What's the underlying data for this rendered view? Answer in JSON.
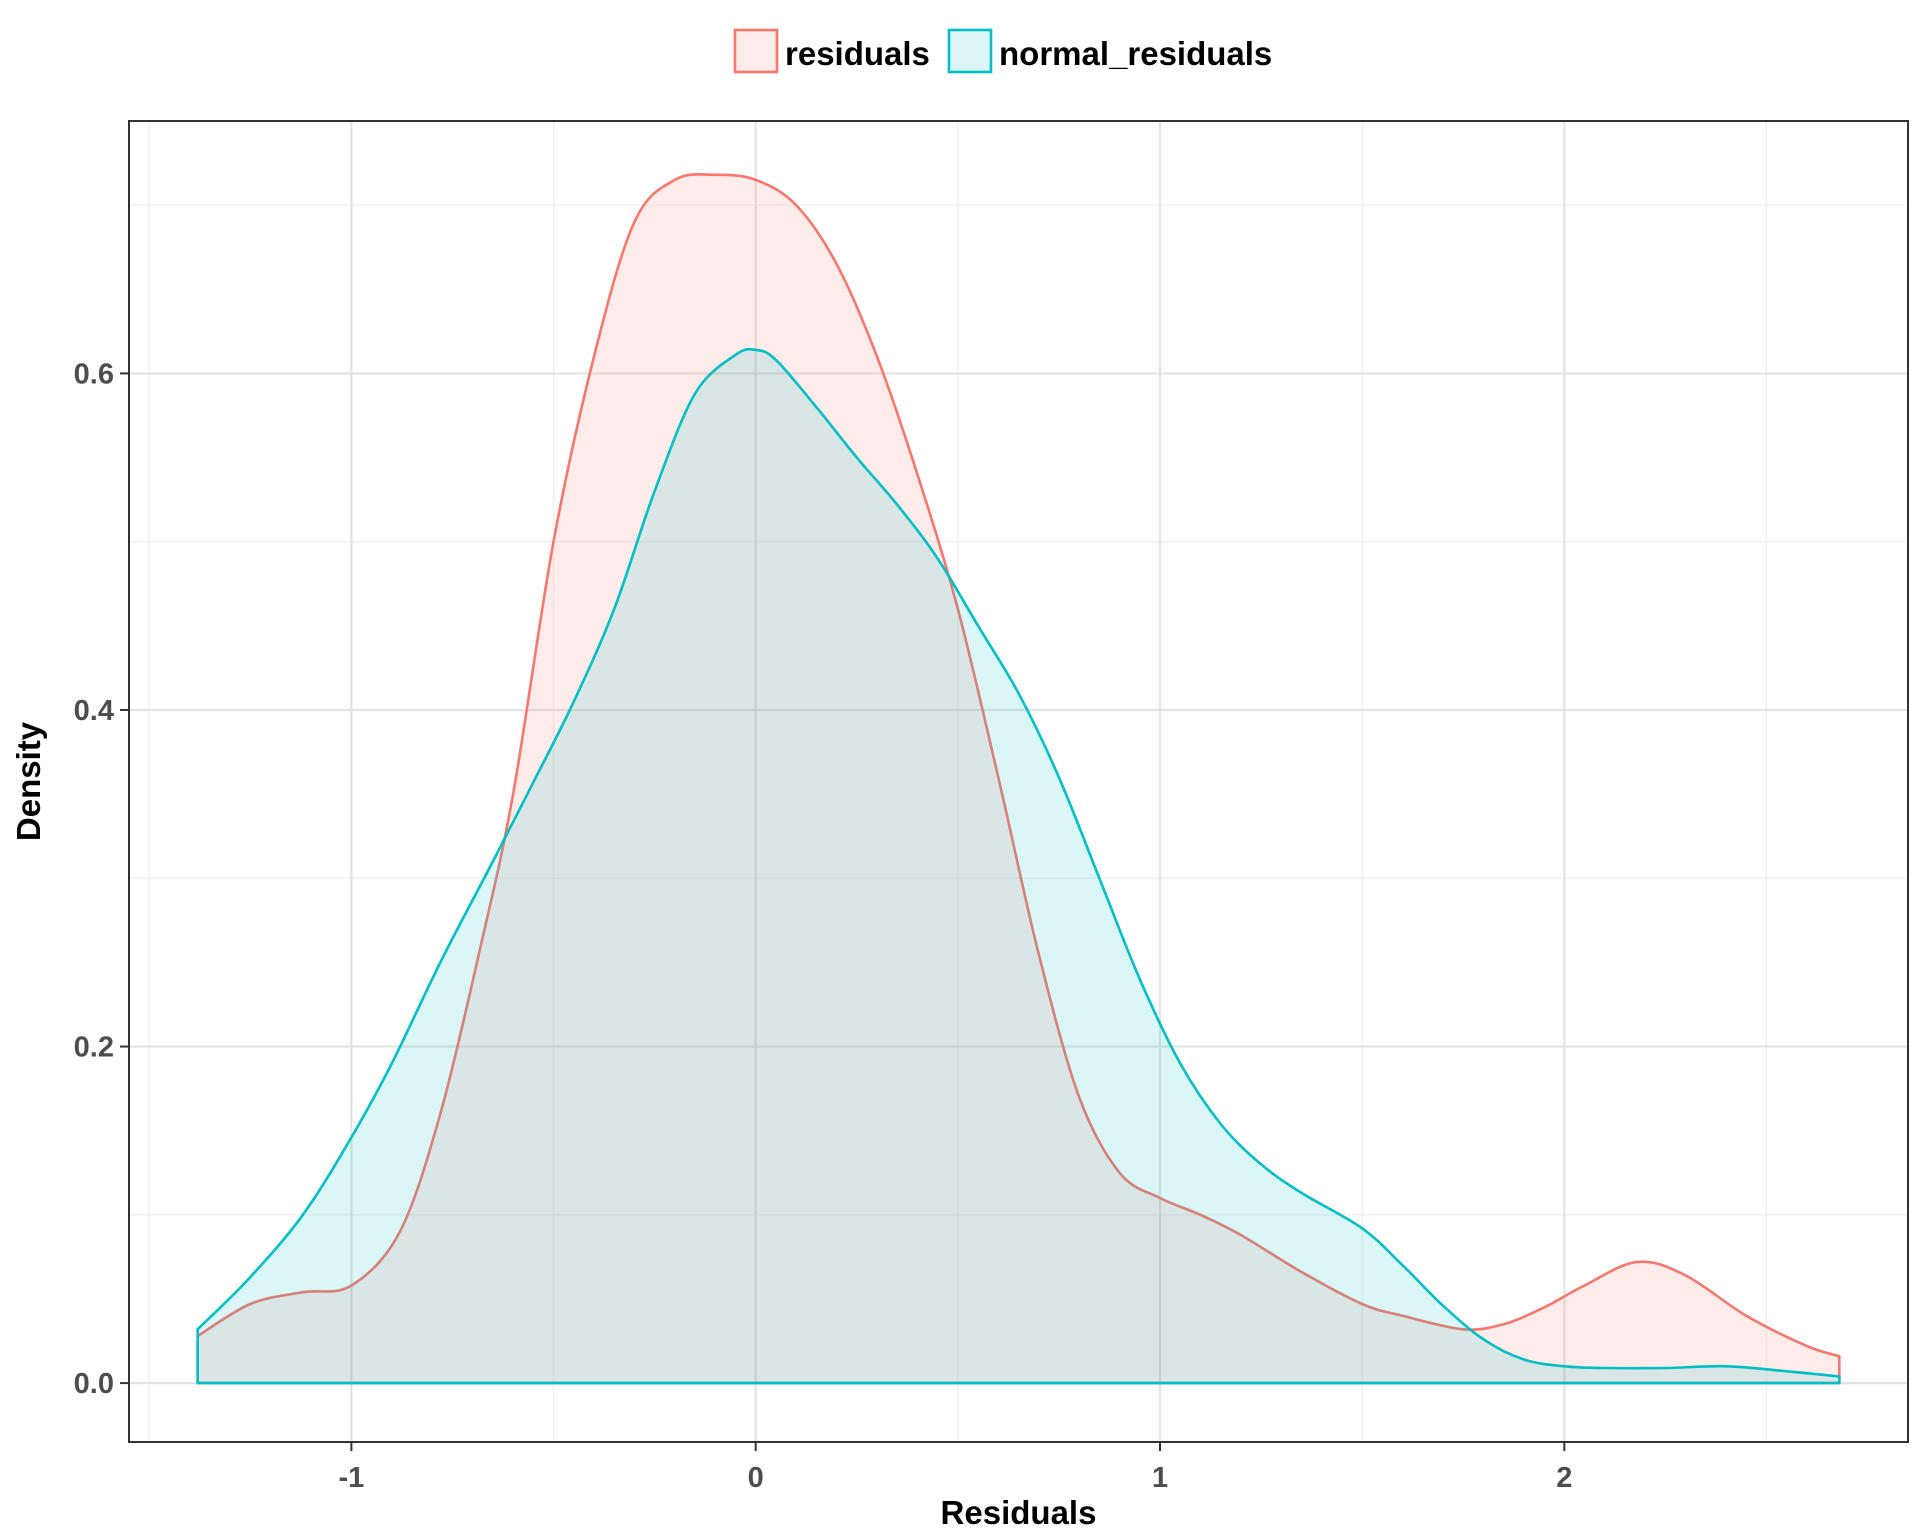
{
  "chart_data": {
    "type": "area",
    "title": "",
    "xlabel": "Residuals",
    "ylabel": "Density",
    "xlim": [
      -1.55,
      2.85
    ],
    "ylim": [
      -0.035,
      0.75
    ],
    "x_ticks": [
      -1,
      0,
      1,
      2
    ],
    "x_tick_labels": [
      "-1",
      "0",
      "1",
      "2"
    ],
    "x_minor_ticks": [
      -1.5,
      -0.5,
      0.5,
      1.5,
      2.5
    ],
    "y_ticks": [
      0.0,
      0.2,
      0.4,
      0.6
    ],
    "y_tick_labels": [
      "0.0",
      "0.2",
      "0.4",
      "0.6"
    ],
    "y_minor_ticks": [
      0.1,
      0.3,
      0.5,
      0.7
    ],
    "grid": true,
    "legend": {
      "position": "top",
      "entries": [
        "residuals",
        "normal_residuals"
      ]
    },
    "series": [
      {
        "name": "residuals",
        "color": "#F8766D",
        "fill": "#FDECEB",
        "x": [
          -1.38,
          -1.25,
          -1.12,
          -1.0,
          -0.88,
          -0.78,
          -0.68,
          -0.6,
          -0.5,
          -0.4,
          -0.3,
          -0.2,
          -0.1,
          0.0,
          0.1,
          0.2,
          0.3,
          0.4,
          0.5,
          0.6,
          0.7,
          0.8,
          0.9,
          1.0,
          1.1,
          1.2,
          1.35,
          1.5,
          1.6,
          1.75,
          1.85,
          1.95,
          2.05,
          2.18,
          2.3,
          2.45,
          2.6,
          2.68
        ],
        "y": [
          0.028,
          0.047,
          0.054,
          0.058,
          0.09,
          0.16,
          0.26,
          0.35,
          0.5,
          0.61,
          0.69,
          0.715,
          0.718,
          0.715,
          0.7,
          0.665,
          0.61,
          0.54,
          0.46,
          0.36,
          0.255,
          0.17,
          0.125,
          0.11,
          0.1,
          0.088,
          0.066,
          0.047,
          0.04,
          0.032,
          0.035,
          0.045,
          0.058,
          0.072,
          0.064,
          0.04,
          0.022,
          0.016
        ]
      },
      {
        "name": "normal_residuals",
        "color": "#00BFC4",
        "fill": "#E6F5F5",
        "x": [
          -1.38,
          -1.25,
          -1.12,
          -1.0,
          -0.9,
          -0.78,
          -0.65,
          -0.55,
          -0.45,
          -0.35,
          -0.25,
          -0.15,
          -0.05,
          0.0,
          0.05,
          0.15,
          0.25,
          0.35,
          0.45,
          0.55,
          0.65,
          0.75,
          0.85,
          0.95,
          1.05,
          1.15,
          1.25,
          1.35,
          1.5,
          1.6,
          1.7,
          1.8,
          1.9,
          2.0,
          2.1,
          2.25,
          2.4,
          2.55,
          2.68
        ],
        "y": [
          0.032,
          0.063,
          0.1,
          0.146,
          0.19,
          0.25,
          0.31,
          0.357,
          0.405,
          0.46,
          0.53,
          0.588,
          0.611,
          0.614,
          0.608,
          0.58,
          0.55,
          0.522,
          0.49,
          0.45,
          0.41,
          0.36,
          0.3,
          0.24,
          0.19,
          0.154,
          0.13,
          0.113,
          0.092,
          0.07,
          0.046,
          0.026,
          0.014,
          0.01,
          0.009,
          0.009,
          0.01,
          0.007,
          0.004
        ]
      }
    ]
  }
}
